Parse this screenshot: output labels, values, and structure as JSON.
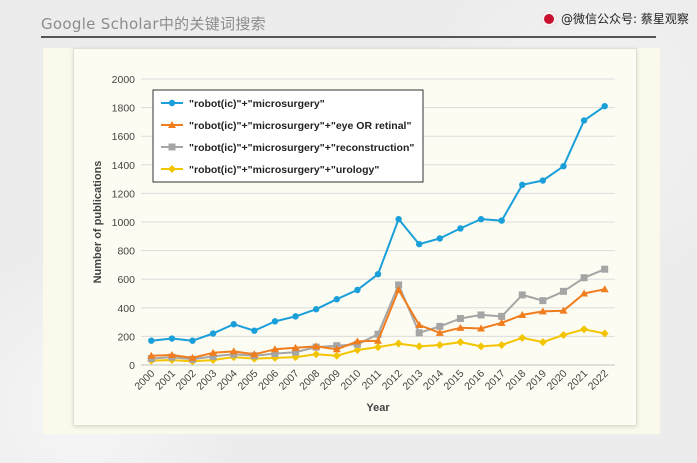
{
  "slide": {
    "title": "Google Scholar中的关键词搜索",
    "watermark": "@微信公众号: 蔡星观察"
  },
  "chart_data": {
    "type": "line",
    "title": "",
    "xlabel": "Year",
    "ylabel": "Number of publications",
    "ylim": [
      0,
      2000
    ],
    "yticks": [
      0,
      200,
      400,
      600,
      800,
      1000,
      1200,
      1400,
      1600,
      1800,
      2000
    ],
    "grid": true,
    "legend_position": "top-left",
    "x": [
      "2000",
      "2001",
      "2002",
      "2003",
      "2004",
      "2005",
      "2006",
      "2007",
      "2008",
      "2009",
      "2010",
      "2011",
      "2012",
      "2013",
      "2014",
      "2015",
      "2016",
      "2017",
      "2018",
      "2019",
      "2020",
      "2021",
      "2022"
    ],
    "series": [
      {
        "name": "\"robot(ic)\"+\"microsurgery\"",
        "color": "#1a9fd9",
        "marker": "circle",
        "values": [
          170,
          185,
          170,
          220,
          285,
          240,
          305,
          340,
          390,
          460,
          525,
          635,
          1020,
          845,
          885,
          955,
          1020,
          1010,
          1260,
          1290,
          1390,
          1710,
          1810
        ]
      },
      {
        "name": "\"robot(ic)\"+\"microsurgery\"+\"eye OR retinal\"",
        "color": "#f07d1e",
        "marker": "triangle",
        "values": [
          65,
          70,
          50,
          85,
          95,
          75,
          110,
          120,
          130,
          110,
          165,
          170,
          525,
          280,
          225,
          260,
          255,
          295,
          350,
          375,
          380,
          500,
          530
        ]
      },
      {
        "name": "\"robot(ic)\"+\"microsurgery\"+\"reconstruction\"",
        "color": "#a5a5a5",
        "marker": "square",
        "values": [
          45,
          55,
          40,
          60,
          75,
          65,
          80,
          90,
          125,
          135,
          145,
          215,
          560,
          225,
          270,
          325,
          350,
          340,
          490,
          450,
          515,
          610,
          670
        ]
      },
      {
        "name": "\"robot(ic)\"+\"microsurgery\"+\"urology\"",
        "color": "#f2c500",
        "marker": "diamond",
        "values": [
          30,
          35,
          25,
          35,
          55,
          45,
          50,
          55,
          75,
          65,
          105,
          125,
          150,
          130,
          140,
          160,
          130,
          140,
          190,
          160,
          210,
          250,
          220
        ]
      }
    ]
  }
}
